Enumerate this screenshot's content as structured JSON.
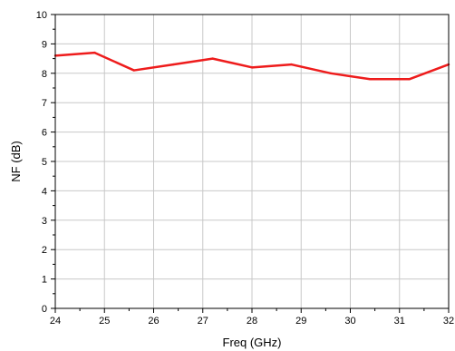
{
  "chart_data": {
    "type": "line",
    "title": "",
    "xlabel": "Freq  (GHz)",
    "ylabel": "NF  (dB)",
    "xlim": [
      24,
      32
    ],
    "ylim": [
      0,
      10
    ],
    "x_ticks": [
      24,
      25,
      26,
      27,
      28,
      29,
      30,
      31,
      32
    ],
    "y_ticks": [
      0,
      1,
      2,
      3,
      4,
      5,
      6,
      7,
      8,
      9,
      10
    ],
    "grid": true,
    "legend": "none",
    "series": [
      {
        "color": "#ee1c1c",
        "x": [
          24.0,
          24.8,
          25.6,
          26.4,
          27.2,
          28.0,
          28.8,
          29.6,
          30.4,
          31.2,
          32.0
        ],
        "y": [
          8.6,
          8.7,
          8.1,
          8.3,
          8.5,
          8.2,
          8.3,
          8.0,
          7.8,
          7.8,
          8.3
        ]
      }
    ]
  }
}
